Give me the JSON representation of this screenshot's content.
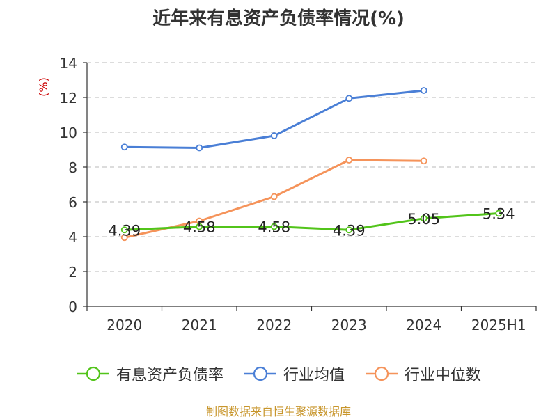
{
  "title": "近年来有息资产负债率情况(%)",
  "source": "制图数据来自恒生聚源数据库",
  "chart_data": {
    "type": "line",
    "title": "近年来有息资产负债率情况(%)",
    "ylabel": "(%)",
    "categories": [
      "2020",
      "2021",
      "2022",
      "2023",
      "2024",
      "2025H1"
    ],
    "ylim": [
      0,
      14
    ],
    "yticks": [
      0,
      2,
      4,
      6,
      8,
      10,
      12,
      14
    ],
    "grid": true,
    "legend_position": "bottom",
    "series": [
      {
        "name": "有息资产负债率",
        "color": "#52c41a",
        "show_labels": true,
        "values": [
          4.39,
          4.58,
          4.58,
          4.39,
          5.05,
          5.34
        ],
        "labels": [
          "4.39",
          "4.58",
          "4.58",
          "4.39",
          "5.05",
          "5.34"
        ]
      },
      {
        "name": "行业均值",
        "color": "#4a7fd6",
        "show_labels": false,
        "values": [
          9.15,
          9.1,
          9.8,
          11.95,
          12.4,
          null
        ]
      },
      {
        "name": "行业中位数",
        "color": "#f5935a",
        "show_labels": false,
        "values": [
          3.95,
          4.9,
          6.3,
          8.4,
          8.35,
          null
        ]
      }
    ]
  }
}
